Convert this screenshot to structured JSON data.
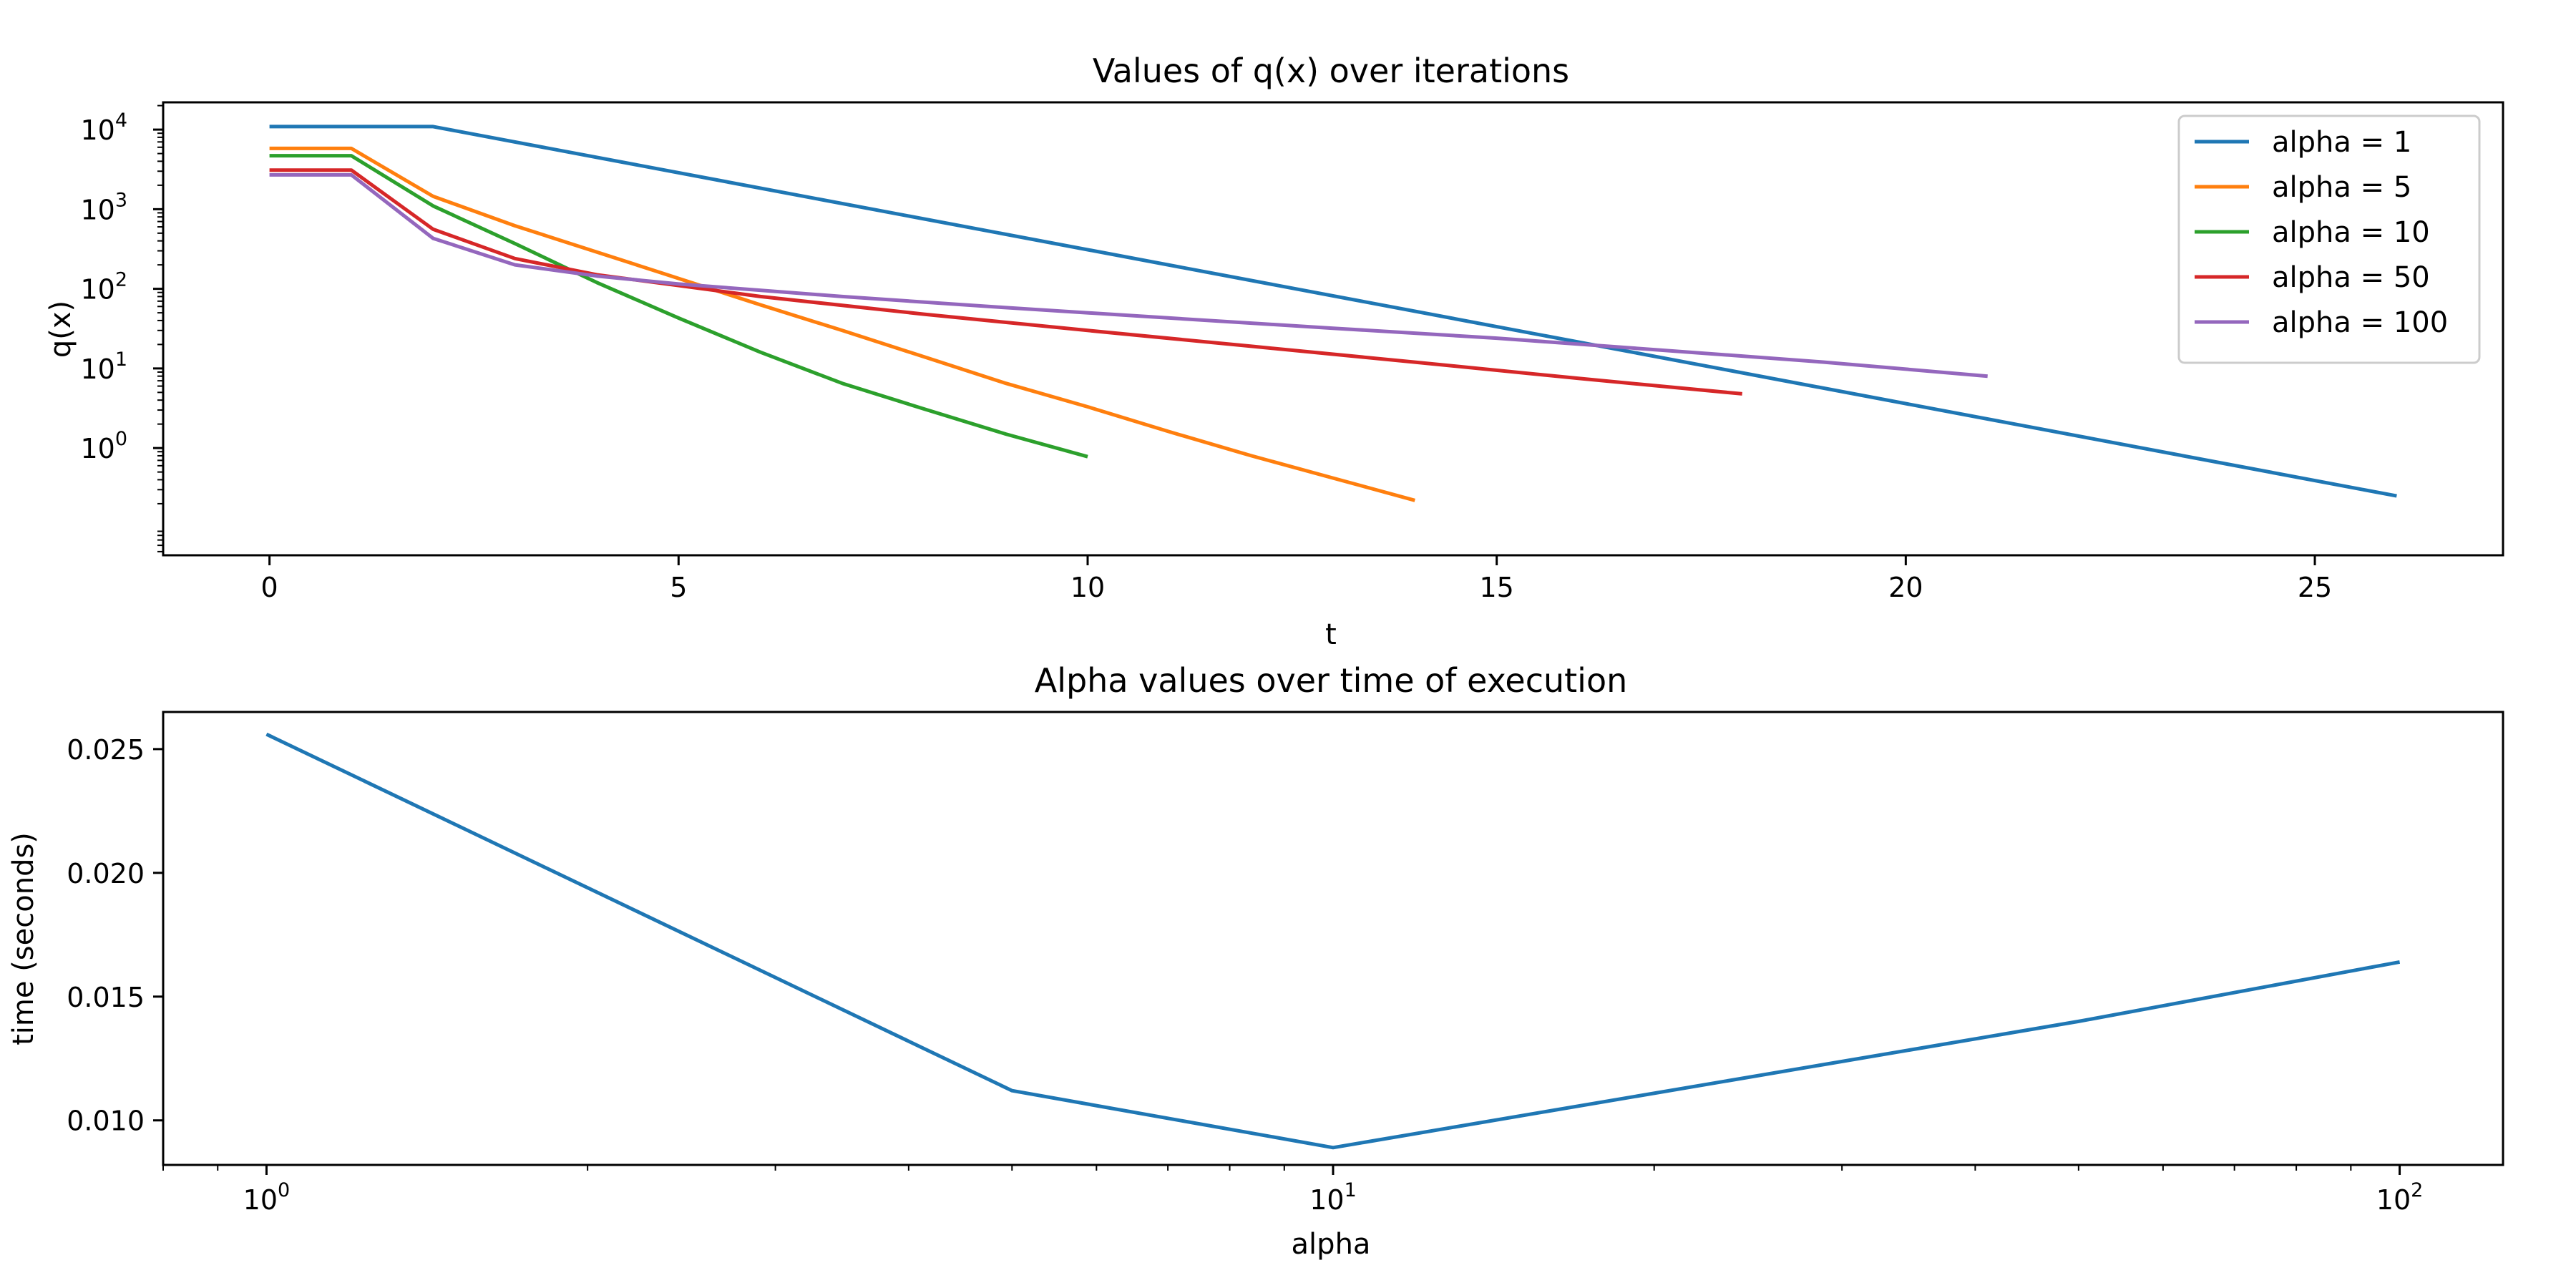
{
  "chart_data": [
    {
      "type": "line",
      "title": "Values of q(x) over iterations",
      "xlabel": "t",
      "ylabel": "q(x)",
      "yscale": "log",
      "xlim": [
        -1.3,
        27.3
      ],
      "ylim": [
        0.045,
        22000
      ],
      "xticks": [
        0,
        5,
        10,
        15,
        20,
        25
      ],
      "xtick_labels": [
        "0",
        "5",
        "10",
        "15",
        "20",
        "25"
      ],
      "yticks": [
        1,
        10,
        100,
        1000,
        10000
      ],
      "ytick_labels": [
        {
          "base": "10",
          "exp": "0"
        },
        {
          "base": "10",
          "exp": "1"
        },
        {
          "base": "10",
          "exp": "2"
        },
        {
          "base": "10",
          "exp": "3"
        },
        {
          "base": "10",
          "exp": "4"
        }
      ],
      "grid": false,
      "legend": "top-right",
      "series": [
        {
          "name": "alpha = 1",
          "color": "#1f77b4",
          "x": [
            0,
            1,
            2,
            26
          ],
          "y": [
            10900,
            10900,
            10900,
            0.25
          ]
        },
        {
          "name": "alpha = 5",
          "color": "#ff7f0e",
          "x": [
            0,
            1,
            2,
            3,
            4,
            5,
            6,
            7,
            8,
            9,
            10,
            11,
            12,
            13,
            14
          ],
          "y": [
            5800,
            5800,
            1450,
            620,
            290,
            135,
            63,
            30,
            14,
            6.5,
            3.3,
            1.6,
            0.8,
            0.42,
            0.22
          ]
        },
        {
          "name": "alpha = 10",
          "color": "#2ca02c",
          "x": [
            0,
            1,
            2,
            3,
            4,
            5,
            6,
            7,
            8,
            9,
            10
          ],
          "y": [
            4700,
            4700,
            1100,
            370,
            120,
            43,
            16,
            6.5,
            3.1,
            1.5,
            0.78
          ]
        },
        {
          "name": "alpha = 50",
          "color": "#d62728",
          "x": [
            0,
            1,
            2,
            3,
            4,
            5,
            6,
            8,
            10,
            12,
            14,
            16,
            18
          ],
          "y": [
            3100,
            3100,
            560,
            240,
            150,
            110,
            80,
            48,
            30,
            19,
            12,
            7.5,
            4.8
          ]
        },
        {
          "name": "alpha = 100",
          "color": "#9467bd",
          "x": [
            0,
            1,
            2,
            3,
            4,
            5,
            7,
            9,
            11,
            13,
            15,
            17,
            19,
            21
          ],
          "y": [
            2700,
            2700,
            430,
            200,
            145,
            115,
            80,
            58,
            43,
            32,
            24,
            17,
            12,
            8
          ]
        }
      ]
    },
    {
      "type": "line",
      "title": "Alpha values over time of execution",
      "xlabel": "alpha",
      "ylabel": "time (seconds)",
      "xscale": "log",
      "xlim": [
        0.8,
        125
      ],
      "ylim": [
        0.0082,
        0.0265
      ],
      "xticks": [
        1,
        10,
        100
      ],
      "xtick_labels": [
        {
          "base": "10",
          "exp": "0"
        },
        {
          "base": "10",
          "exp": "1"
        },
        {
          "base": "10",
          "exp": "2"
        }
      ],
      "yticks": [
        0.01,
        0.015,
        0.02,
        0.025
      ],
      "ytick_labels": [
        "0.010",
        "0.015",
        "0.020",
        "0.025"
      ],
      "grid": false,
      "series": [
        {
          "color": "#1f77b4",
          "x": [
            1,
            5,
            10,
            50,
            100
          ],
          "y": [
            0.0256,
            0.0112,
            0.0089,
            0.014,
            0.0164
          ]
        }
      ]
    }
  ]
}
